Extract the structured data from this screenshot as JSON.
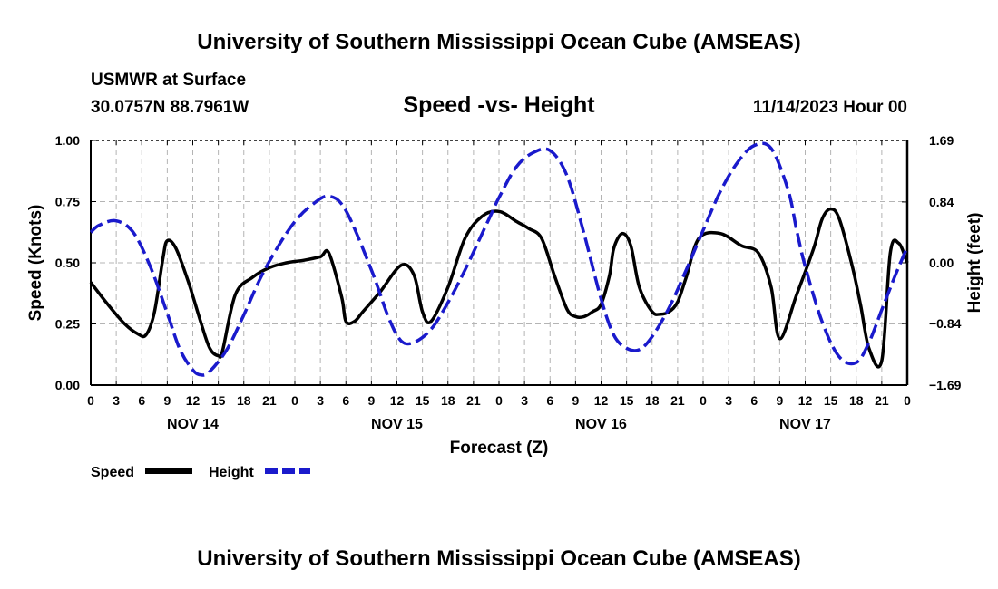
{
  "header": {
    "title": "University of Southern Mississippi Ocean Cube (AMSEAS)",
    "station": "USMWR at Surface",
    "coords": "30.0757N  88.7961W",
    "subtitle": "Speed -vs- Height",
    "datetime": "11/14/2023 Hour 00"
  },
  "footer": {
    "title": "University of Southern Mississippi Ocean Cube (AMSEAS)"
  },
  "colors": {
    "speed": "#000000",
    "height": "#1a1acc",
    "grid": "#b4b4b4"
  },
  "chart_data": {
    "type": "line",
    "xlabel": "Forecast (Z)",
    "ylabel_left": "Speed (Knots)",
    "ylabel_right": "Height (feet)",
    "xlim": [
      0,
      96
    ],
    "ylim_left": [
      0,
      1
    ],
    "ylim_right": [
      -1.69,
      1.69
    ],
    "grid": true,
    "x_tick_step": 3,
    "x_tick_labels": [
      "0",
      "3",
      "6",
      "9",
      "12",
      "15",
      "18",
      "21",
      "0",
      "3",
      "6",
      "9",
      "12",
      "15",
      "18",
      "21",
      "0",
      "3",
      "6",
      "9",
      "12",
      "15",
      "18",
      "21",
      "0",
      "3",
      "6",
      "9",
      "12",
      "15",
      "18",
      "21",
      "0"
    ],
    "day_labels": [
      {
        "label": "NOV 14",
        "x": 12
      },
      {
        "label": "NOV 15",
        "x": 36
      },
      {
        "label": "NOV 16",
        "x": 60
      },
      {
        "label": "NOV 17",
        "x": 84
      }
    ],
    "y_left_ticks": [
      {
        "v": 0,
        "label": "0.00"
      },
      {
        "v": 0.25,
        "label": "0.25"
      },
      {
        "v": 0.5,
        "label": "0.50"
      },
      {
        "v": 0.75,
        "label": "0.75"
      },
      {
        "v": 1.0,
        "label": "1.00"
      }
    ],
    "y_right_ticks": [
      {
        "v": -1.69,
        "label": "−1.69"
      },
      {
        "v": -0.84,
        "label": "−0.84"
      },
      {
        "v": 0,
        "label": "0.00"
      },
      {
        "v": 0.84,
        "label": "0.84"
      },
      {
        "v": 1.69,
        "label": "1.69"
      }
    ],
    "legend": [
      {
        "name": "Speed",
        "style": "solid"
      },
      {
        "name": "Height",
        "style": "dashed"
      }
    ],
    "series": [
      {
        "name": "Speed",
        "axis": "left",
        "x": [
          0,
          2,
          4,
          5.5,
          6.5,
          7.5,
          8.5,
          9,
          10,
          11.5,
          13,
          14,
          15,
          15.5,
          17,
          19,
          21,
          23,
          25,
          27,
          28,
          29.5,
          30,
          31,
          32,
          34,
          36.5,
          38,
          39,
          40,
          42,
          44,
          46,
          48,
          50,
          51.5,
          53,
          54.5,
          56,
          57,
          58,
          59,
          60,
          61,
          61.5,
          62.5,
          63.5,
          64.5,
          66,
          67,
          68,
          69,
          70,
          71.5,
          74,
          76.5,
          78.5,
          80,
          81,
          83,
          85,
          86,
          87,
          88,
          89.5,
          90.5,
          91.5,
          93,
          94,
          95,
          96
        ],
        "y": [
          0.42,
          0.33,
          0.25,
          0.21,
          0.205,
          0.3,
          0.52,
          0.59,
          0.56,
          0.42,
          0.25,
          0.15,
          0.12,
          0.14,
          0.37,
          0.44,
          0.48,
          0.5,
          0.51,
          0.525,
          0.54,
          0.36,
          0.26,
          0.26,
          0.3,
          0.38,
          0.49,
          0.45,
          0.3,
          0.26,
          0.4,
          0.6,
          0.69,
          0.71,
          0.67,
          0.64,
          0.6,
          0.45,
          0.31,
          0.28,
          0.28,
          0.3,
          0.33,
          0.45,
          0.56,
          0.62,
          0.57,
          0.4,
          0.3,
          0.29,
          0.3,
          0.34,
          0.44,
          0.6,
          0.62,
          0.57,
          0.54,
          0.4,
          0.19,
          0.37,
          0.56,
          0.68,
          0.72,
          0.68,
          0.49,
          0.33,
          0.15,
          0.1,
          0.54,
          0.58,
          0.5
        ]
      },
      {
        "name": "Height",
        "axis": "right",
        "x": [
          0,
          1,
          3,
          5,
          7,
          9,
          10.5,
          12,
          13,
          14,
          16,
          18,
          20,
          22,
          24,
          26,
          28,
          30,
          33,
          35,
          36.5,
          38,
          40,
          42,
          44,
          46,
          47,
          48,
          50,
          52,
          54,
          56,
          58,
          60,
          61.5,
          63,
          64.5,
          66,
          68,
          70,
          72,
          74,
          76,
          78,
          80,
          82,
          83,
          84,
          86,
          88,
          90,
          91.5,
          93,
          94.5,
          96
        ],
        "y": [
          0.42,
          0.52,
          0.58,
          0.42,
          -0.05,
          -0.7,
          -1.2,
          -1.48,
          -1.55,
          -1.5,
          -1.2,
          -0.72,
          -0.2,
          0.22,
          0.57,
          0.8,
          0.92,
          0.72,
          -0.1,
          -0.75,
          -1.08,
          -1.1,
          -0.92,
          -0.55,
          -0.1,
          0.4,
          0.65,
          0.9,
          1.32,
          1.52,
          1.55,
          1.2,
          0.4,
          -0.5,
          -1.0,
          -1.18,
          -1.2,
          -1.02,
          -0.62,
          -0.1,
          0.45,
          0.98,
          1.38,
          1.62,
          1.58,
          1.0,
          0.45,
          -0.05,
          -0.82,
          -1.3,
          -1.38,
          -1.1,
          -0.65,
          -0.2,
          0.22
        ]
      }
    ]
  }
}
